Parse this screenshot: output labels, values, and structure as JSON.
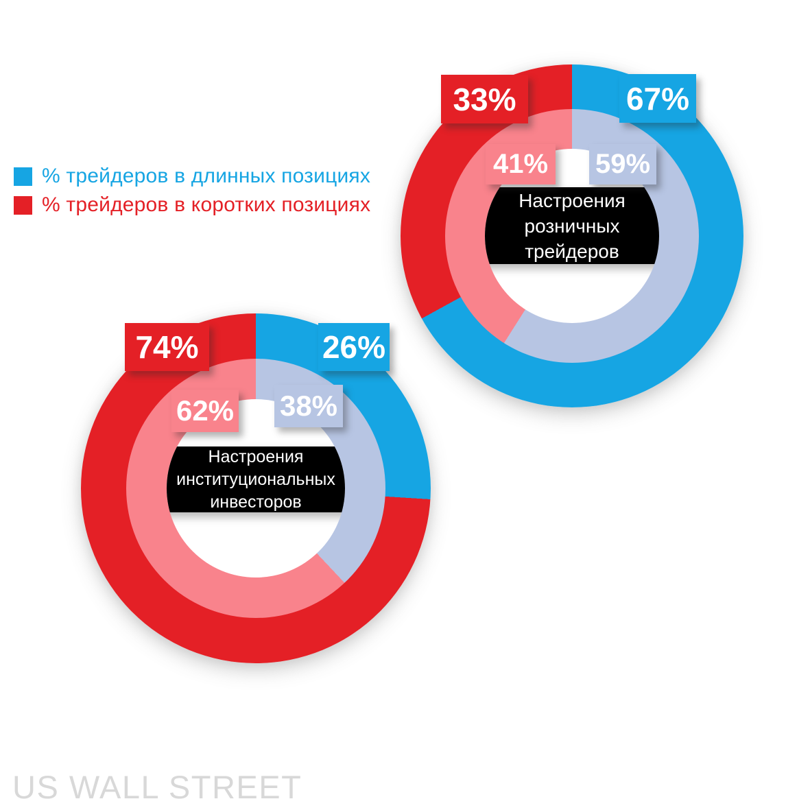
{
  "colors": {
    "long_blue": "#16A5E3",
    "short_red": "#E42026",
    "inner_long_blue": "#B7C5E3",
    "inner_short_pink": "#F9838C",
    "band_bg": "#000000",
    "band_text": "#FFFFFF",
    "watermark_gray": "#D8D8D8"
  },
  "legend": {
    "items": [
      {
        "label": "% трейдеров в длинных позициях",
        "color": "#16A5E3"
      },
      {
        "label": "% трейдеров в коротких позициях",
        "color": "#E42026"
      }
    ]
  },
  "chart_data": [
    {
      "type": "pie",
      "subtype": "nested-donut",
      "name": "retail-traders-sentiment",
      "title": "Настроения розничных трейдеров",
      "title_lines": [
        "Настроения",
        "розничных",
        "трейдеров"
      ],
      "legend_position": "top-left",
      "rings": {
        "outer": {
          "long_pct": 67,
          "short_pct": 33
        },
        "inner": {
          "long_pct": 59,
          "short_pct": 41
        }
      },
      "labels": {
        "outer_long": "67%",
        "outer_short": "33%",
        "inner_long": "59%",
        "inner_short": "41%"
      }
    },
    {
      "type": "pie",
      "subtype": "nested-donut",
      "name": "institutional-investors-sentiment",
      "title": "Настроения институциональных инвесторов",
      "title_lines": [
        "Настроения",
        "институциональных",
        "инвесторов"
      ],
      "legend_position": "top-left",
      "rings": {
        "outer": {
          "long_pct": 26,
          "short_pct": 74
        },
        "inner": {
          "long_pct": 38,
          "short_pct": 62
        }
      },
      "labels": {
        "outer_long": "26%",
        "outer_short": "74%",
        "inner_long": "38%",
        "inner_short": "62%"
      }
    }
  ],
  "watermark": {
    "text": "US WALL STREET"
  }
}
